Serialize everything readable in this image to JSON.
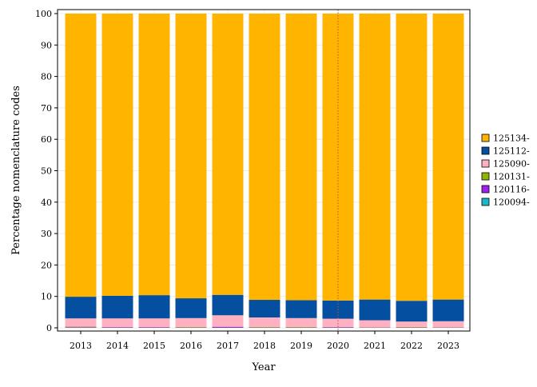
{
  "chart_data": {
    "type": "bar",
    "stacked": true,
    "xlabel": "Year",
    "ylabel": "Percentage nomenclature codes",
    "ylim": [
      0,
      100
    ],
    "y_ticks": [
      0,
      10,
      20,
      30,
      40,
      50,
      60,
      70,
      80,
      90,
      100
    ],
    "grid": true,
    "legend_position": "right",
    "reference_line": {
      "x": "2020",
      "color": "#c0504d",
      "style": "dotted"
    },
    "categories": [
      "2013",
      "2014",
      "2015",
      "2016",
      "2017",
      "2018",
      "2019",
      "2020",
      "2021",
      "2022",
      "2023"
    ],
    "series": [
      {
        "name": "120094-",
        "color": "#1ab7c8",
        "values": [
          0,
          0,
          0,
          0,
          0,
          0,
          0,
          0,
          0,
          0,
          0
        ]
      },
      {
        "name": "120116-",
        "color": "#a020f0",
        "values": [
          0.2,
          0.2,
          0.2,
          0.1,
          0.3,
          0.1,
          0.1,
          0.2,
          0.1,
          0.1,
          0.1
        ]
      },
      {
        "name": "120131-",
        "color": "#8db600",
        "values": [
          0.2,
          0.1,
          0.1,
          0.2,
          0.1,
          0.2,
          0.2,
          0.1,
          0.1,
          0.2,
          0.1
        ]
      },
      {
        "name": "125090-",
        "color": "#ffb1c1",
        "values": [
          2.6,
          2.7,
          2.7,
          2.8,
          3.6,
          3.0,
          2.8,
          2.6,
          2.2,
          1.7,
          1.9
        ]
      },
      {
        "name": "125112-",
        "color": "#044fa0",
        "values": [
          6.9,
          7.2,
          7.4,
          6.3,
          6.5,
          5.6,
          5.7,
          5.8,
          6.6,
          6.6,
          6.9
        ]
      },
      {
        "name": "125134-",
        "color": "#ffb400",
        "values": [
          90.1,
          89.8,
          89.6,
          90.6,
          89.5,
          91.1,
          91.2,
          91.3,
          91.0,
          91.4,
          91.0
        ]
      }
    ],
    "legend_order": [
      "125134-",
      "125112-",
      "125090-",
      "120131-",
      "120116-",
      "120094-"
    ]
  }
}
